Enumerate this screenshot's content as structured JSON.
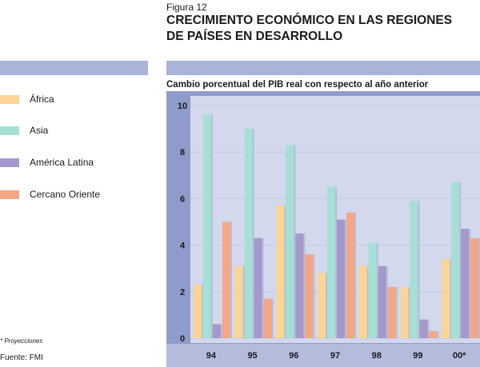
{
  "figure_label": "Figura 12",
  "title_line1": "CRECIMIENTO ECONÓMICO EN LAS REGIONES",
  "title_line2": "DE PAÍSES EN DESARROLLO",
  "footnote": "* Proyecciones",
  "source": "Fuente: FMI",
  "colors": {
    "band": "#a9b4d9",
    "plot_bg": "#d3d8ec",
    "panel": "#8f9ccb",
    "axis_strip": "#b4bcde"
  },
  "chart_data": {
    "type": "bar",
    "title": "Cambio porcentual del PIB real con respecto al año anterior",
    "xlabel": "",
    "ylabel": "",
    "ylim": [
      0,
      10
    ],
    "yticks": [
      0,
      2,
      4,
      6,
      8,
      10
    ],
    "categories": [
      "94",
      "95",
      "96",
      "97",
      "98",
      "99",
      "00*"
    ],
    "series": [
      {
        "name": "África",
        "color": "#fcd594",
        "values": [
          2.3,
          3.1,
          5.7,
          2.8,
          3.1,
          2.2,
          3.4
        ]
      },
      {
        "name": "Asia",
        "color": "#a5e0d5",
        "values": [
          9.6,
          9.0,
          8.3,
          6.5,
          4.1,
          5.9,
          6.7
        ]
      },
      {
        "name": "América Latina",
        "color": "#a598cc",
        "values": [
          0.6,
          4.3,
          4.5,
          5.1,
          3.1,
          0.8,
          4.7
        ]
      },
      {
        "name": "Cercano Oriente",
        "color": "#f5a784",
        "values": [
          5.0,
          1.7,
          3.6,
          5.4,
          2.2,
          0.3,
          4.3
        ]
      }
    ]
  }
}
